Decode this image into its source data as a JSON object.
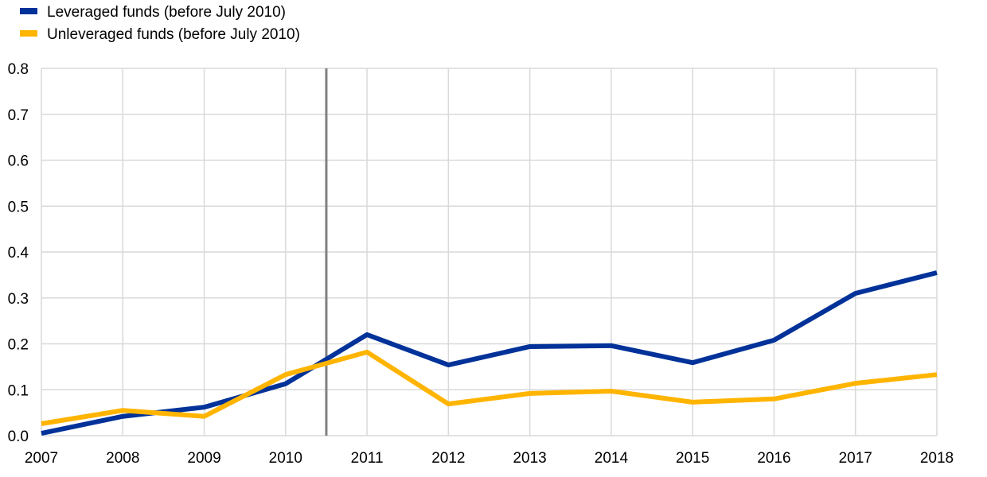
{
  "chart_data": {
    "type": "line",
    "title": "",
    "xlabel": "",
    "ylabel": "",
    "x": [
      2007,
      2008,
      2009,
      2010,
      2011,
      2012,
      2013,
      2014,
      2015,
      2016,
      2017,
      2018
    ],
    "x_tick_labels": [
      "2007",
      "2008",
      "2009",
      "2010",
      "2011",
      "2012",
      "2013",
      "2014",
      "2015",
      "2016",
      "2017",
      "2018"
    ],
    "y_tick_labels": [
      "0.0",
      "0.1",
      "0.2",
      "0.3",
      "0.4",
      "0.5",
      "0.6",
      "0.7",
      "0.8"
    ],
    "xlim": [
      2007,
      2018
    ],
    "ylim": [
      0,
      0.8
    ],
    "grid": true,
    "legend_position": "top-left",
    "vertical_marker_x": 2010.5,
    "marker_color": "#808080",
    "series": [
      {
        "name": "Leveraged funds (before July 2010)",
        "color": "#003299",
        "values": [
          0.005,
          0.042,
          0.062,
          0.113,
          0.22,
          0.154,
          0.194,
          0.196,
          0.159,
          0.208,
          0.31,
          0.355
        ]
      },
      {
        "name": "Unleveraged funds (before July 2010)",
        "color": "#FFB400",
        "values": [
          0.026,
          0.055,
          0.042,
          0.133,
          0.182,
          0.069,
          0.092,
          0.097,
          0.073,
          0.08,
          0.114,
          0.133
        ]
      }
    ]
  }
}
